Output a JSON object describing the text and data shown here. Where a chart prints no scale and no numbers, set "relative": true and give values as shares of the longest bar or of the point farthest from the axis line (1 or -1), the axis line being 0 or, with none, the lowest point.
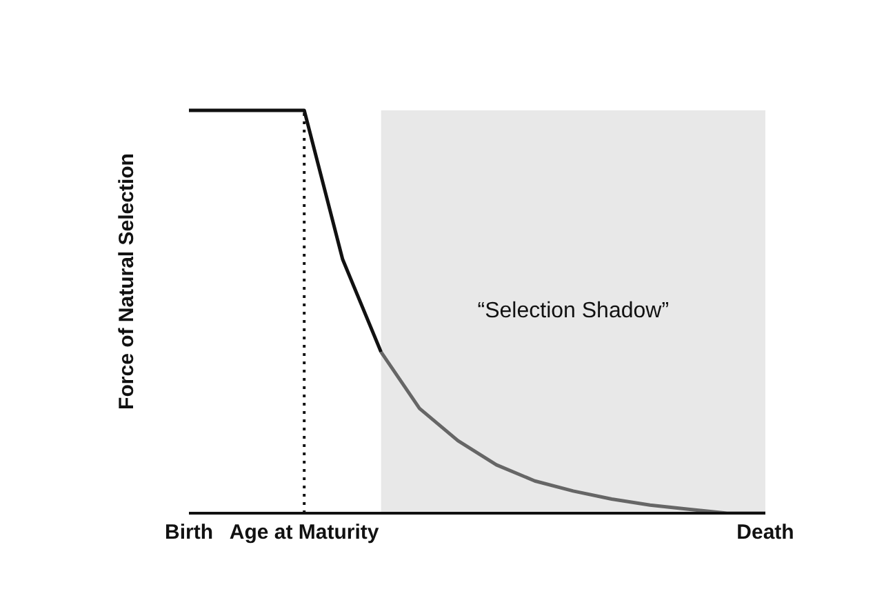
{
  "chart_data": {
    "type": "line",
    "relative": true,
    "ylabel": "Force of Natural Selection",
    "categories": [
      "Birth",
      null,
      null,
      "Age at Maturity",
      null,
      null,
      null,
      null,
      null,
      null,
      null,
      null,
      null,
      null,
      null,
      "Death"
    ],
    "series": [
      {
        "color": "#111111",
        "values": [
          1,
          1,
          1,
          1,
          0.63,
          0.4,
          null,
          null,
          null,
          null,
          null,
          null,
          null,
          null,
          null,
          null
        ]
      },
      {
        "color": "#666666",
        "values": [
          null,
          null,
          null,
          null,
          null,
          0.4,
          0.26,
          0.18,
          0.12,
          0.08,
          0.055,
          0.035,
          0.02,
          0.01,
          0,
          0
        ]
      }
    ],
    "ref_lines": [
      {
        "axis": "x",
        "value": "Age at Maturity",
        "line_style": "dotted",
        "color": "#111111"
      }
    ],
    "annotations": [
      "“Selection Shadow”"
    ],
    "grid": false,
    "legend": false,
    "marker": "none",
    "line_style": "solid"
  }
}
